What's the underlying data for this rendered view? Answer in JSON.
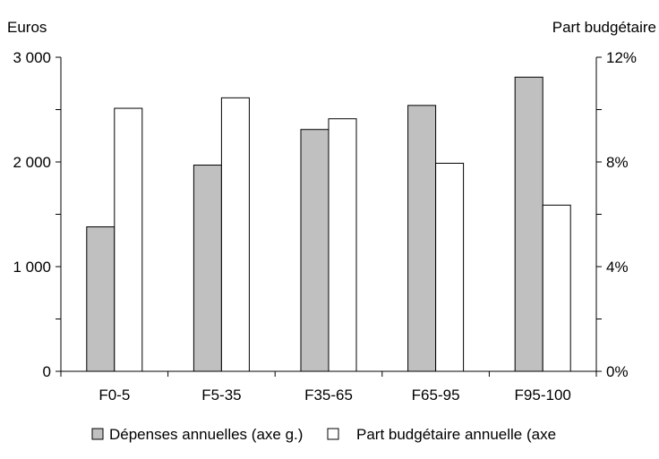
{
  "chart_data": {
    "type": "bar",
    "categories": [
      "F0-5",
      "F5-35",
      "F35-65",
      "F65-95",
      "F95-100"
    ],
    "series": [
      {
        "name": "Dépenses annuelles (axe g.)",
        "axis": "left",
        "color": "#c0c0c0",
        "values": [
          1380,
          1970,
          2310,
          2540,
          2810
        ]
      },
      {
        "name": "Part budgétaire annuelle (axe",
        "axis": "right",
        "color": "#ffffff",
        "values": [
          10.05,
          10.45,
          9.65,
          7.95,
          6.35
        ]
      }
    ],
    "ylabel_left": "Euros",
    "ylabel_right": "Part budgétaire",
    "ylim_left": [
      0,
      3000
    ],
    "ylim_right": [
      0,
      12
    ],
    "yticks_left": [
      {
        "value": 0,
        "label": "0"
      },
      {
        "value": 1000,
        "label": "1 000"
      },
      {
        "value": 2000,
        "label": "2 000"
      },
      {
        "value": 3000,
        "label": "3 000"
      }
    ],
    "yticks_right": [
      {
        "value": 0,
        "label": "0%"
      },
      {
        "value": 4,
        "label": "4%"
      },
      {
        "value": 8,
        "label": "8%"
      },
      {
        "value": 12,
        "label": "12%"
      }
    ],
    "grid": false,
    "legend": "bottom"
  }
}
